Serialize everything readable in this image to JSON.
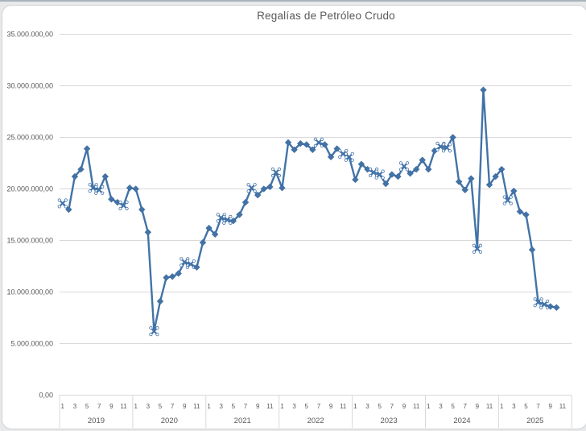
{
  "window": {
    "background_color": "#e7e9ea",
    "card_color": "#ffffff"
  },
  "chart_data": {
    "type": "line",
    "title": "Regalías de Petróleo Crudo",
    "title_color": "#595959",
    "series_color": "#4273a8",
    "gridline_color": "#d9d9d9",
    "label_color": "#595959",
    "values_unit": "millions (read against y-axis of 0 to 35.000.000,00)",
    "y_axis": {
      "min": 0,
      "max": 35000000,
      "tick_interval": 5000000,
      "tick_labels_top_to_bottom": [
        "35.000.000,00",
        "30.000.000,00",
        "25.000.000,00",
        "20.000.000,00",
        "15.000.000,00",
        "10.000.000,00",
        "5.000.000,00",
        "0,00"
      ]
    },
    "x_axis": {
      "month_tick_labels": [
        "1",
        "3",
        "5",
        "7",
        "9",
        "11"
      ],
      "years": [
        "2019",
        "2020",
        "2021",
        "2022",
        "2023",
        "2024",
        "2025"
      ]
    },
    "series_name": "Regalías de Petróleo Crudo",
    "data_by_year": [
      {
        "year": "2019",
        "values_millions": [
          18.6,
          18.0,
          21.2,
          21.9,
          23.9,
          20.1,
          19.9,
          21.2,
          19.0,
          18.7,
          18.4,
          20.1
        ],
        "x_marker_months": [
          1,
          6,
          7,
          11
        ]
      },
      {
        "year": "2020",
        "values_millions": [
          20.0,
          18.0,
          15.8,
          6.2,
          9.1,
          11.4,
          11.5,
          11.8,
          12.9,
          12.7,
          12.4,
          14.8
        ],
        "x_marker_months": [
          4,
          9,
          10
        ]
      },
      {
        "year": "2021",
        "values_millions": [
          16.2,
          15.6,
          17.2,
          17.0,
          16.9,
          17.5,
          18.7,
          20.1,
          19.4,
          20.0,
          20.2,
          21.6
        ],
        "x_marker_months": [
          3,
          4,
          8,
          12
        ]
      },
      {
        "year": "2022",
        "values_millions": [
          20.1,
          24.5,
          23.8,
          24.4,
          24.3,
          23.8,
          24.5,
          24.3,
          23.1,
          23.9,
          23.4,
          23.1
        ],
        "x_marker_months": [
          7,
          11,
          12
        ]
      },
      {
        "year": "2023",
        "values_millions": [
          20.9,
          22.4,
          21.9,
          21.6,
          21.4,
          20.5,
          21.4,
          21.2,
          22.2,
          21.5,
          21.9,
          22.8
        ],
        "x_marker_months": [
          4,
          5,
          9
        ]
      },
      {
        "year": "2024",
        "values_millions": [
          21.9,
          23.7,
          24.1,
          24.0,
          25.0,
          20.7,
          19.9,
          21.0,
          14.2,
          29.6,
          20.4,
          21.2
        ],
        "x_marker_months": [
          3,
          4,
          9
        ]
      },
      {
        "year": "2025",
        "values_millions": [
          21.9,
          18.9,
          19.8,
          17.8,
          17.5,
          14.1,
          9.0,
          8.8,
          8.6,
          8.5
        ],
        "x_marker_months": [
          2,
          7,
          8
        ]
      }
    ]
  }
}
